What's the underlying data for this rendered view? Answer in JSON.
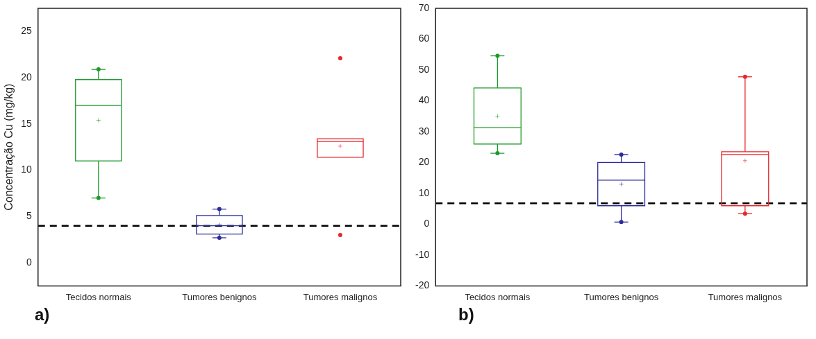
{
  "chart_data": [
    {
      "type": "box",
      "ylabel": "Concentração Cu (mg/kg)",
      "categories": [
        "Tecidos normais",
        "Tumores benignos",
        "Tumores malignos"
      ],
      "boxes": [
        {
          "low": 7,
          "q1": 11,
          "median": 17,
          "q3": 19.8,
          "high": 20.9,
          "mean": 15.4,
          "outliers": [
            20.9,
            7
          ]
        },
        {
          "low": 2.7,
          "q1": 3.1,
          "median": 4.0,
          "q3": 5.1,
          "high": 5.8,
          "mean": 4.1,
          "outliers": [
            5.8,
            2.7
          ]
        },
        {
          "low": 11.4,
          "q1": 11.4,
          "median": 13.1,
          "q3": 13.4,
          "high": 13.4,
          "mean": 12.6,
          "outliers": [
            22.1,
            3.0
          ]
        }
      ],
      "colors": [
        "#1f9a2a",
        "#2a2a9a",
        "#e8262a"
      ],
      "ylim": [
        -2.5,
        27.5
      ],
      "yticks": [
        0,
        5,
        10,
        15,
        20,
        25
      ],
      "ref_lines": [
        {
          "axis": "y",
          "value": 4,
          "color": "#000000",
          "line_style": "dashed"
        }
      ],
      "marker": "circle",
      "grid": false,
      "legend": false,
      "annotations": [
        "a)"
      ]
    },
    {
      "type": "box",
      "categories": [
        "Tecidos normais",
        "Tumores benignos",
        "Tumores malignos"
      ],
      "boxes": [
        {
          "low": 23,
          "q1": 26,
          "median": 31.3,
          "q3": 44.2,
          "high": 54.6,
          "mean": 35,
          "outliers": [
            54.6,
            23
          ]
        },
        {
          "low": 0.7,
          "q1": 6,
          "median": 14.3,
          "q3": 20,
          "high": 22.6,
          "mean": 13,
          "outliers": [
            22.6,
            0.7
          ]
        },
        {
          "low": 3.4,
          "q1": 6,
          "median": 22.6,
          "q3": 23.5,
          "high": 47.8,
          "mean": 20.6,
          "outliers": [
            47.8,
            3.4
          ]
        }
      ],
      "colors": [
        "#1f9a2a",
        "#2a2a9a",
        "#e8262a"
      ],
      "ylim": [
        -20,
        70
      ],
      "yticks": [
        -20,
        -10,
        0,
        10,
        20,
        30,
        40,
        50,
        60,
        70
      ],
      "ref_lines": [
        {
          "axis": "y",
          "value": 6.8,
          "color": "#000000",
          "line_style": "dashed"
        }
      ],
      "marker": "circle",
      "grid": false,
      "legend": false,
      "annotations": [
        "b)"
      ]
    }
  ]
}
